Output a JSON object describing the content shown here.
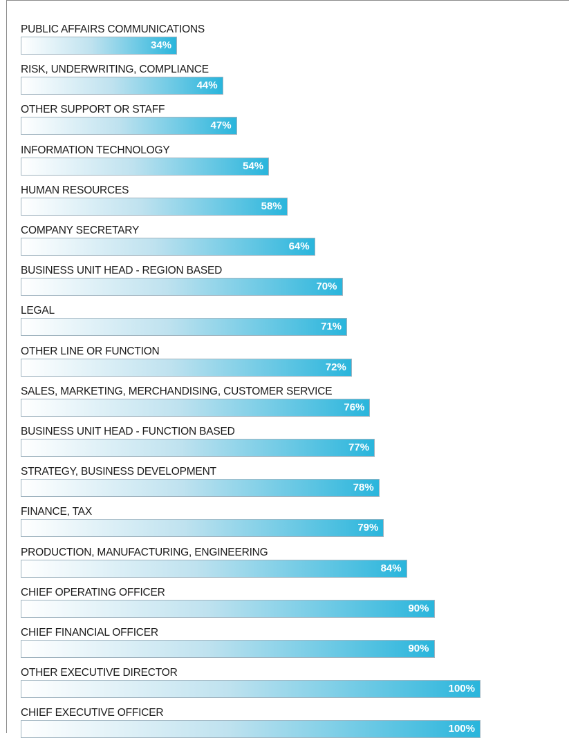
{
  "chart_data": {
    "type": "bar",
    "orientation": "horizontal",
    "value_suffix": "%",
    "xlim": [
      0,
      100
    ],
    "grid": false,
    "legend": "none",
    "bar_gradient": [
      "#ffffff",
      "#29b5dc"
    ],
    "categories": [
      "PUBLIC AFFAIRS COMMUNICATIONS",
      "RISK, UNDERWRITING, COMPLIANCE",
      "OTHER SUPPORT OR STAFF",
      "INFORMATION TECHNOLOGY",
      "HUMAN RESOURCES",
      "COMPANY SECRETARY",
      "BUSINESS UNIT HEAD - REGION BASED",
      "LEGAL",
      "OTHER LINE OR FUNCTION",
      "SALES, MARKETING, MERCHANDISING, CUSTOMER SERVICE",
      "BUSINESS UNIT HEAD - FUNCTION BASED",
      "STRATEGY, BUSINESS DEVELOPMENT",
      "FINANCE, TAX",
      "PRODUCTION, MANUFACTURING, ENGINEERING",
      "CHIEF OPERATING OFFICER",
      "CHIEF FINANCIAL OFFICER",
      "OTHER EXECUTIVE DIRECTOR",
      "CHIEF EXECUTIVE OFFICER"
    ],
    "values": [
      34,
      44,
      47,
      54,
      58,
      64,
      70,
      71,
      72,
      76,
      77,
      78,
      79,
      84,
      90,
      90,
      100,
      100
    ]
  }
}
